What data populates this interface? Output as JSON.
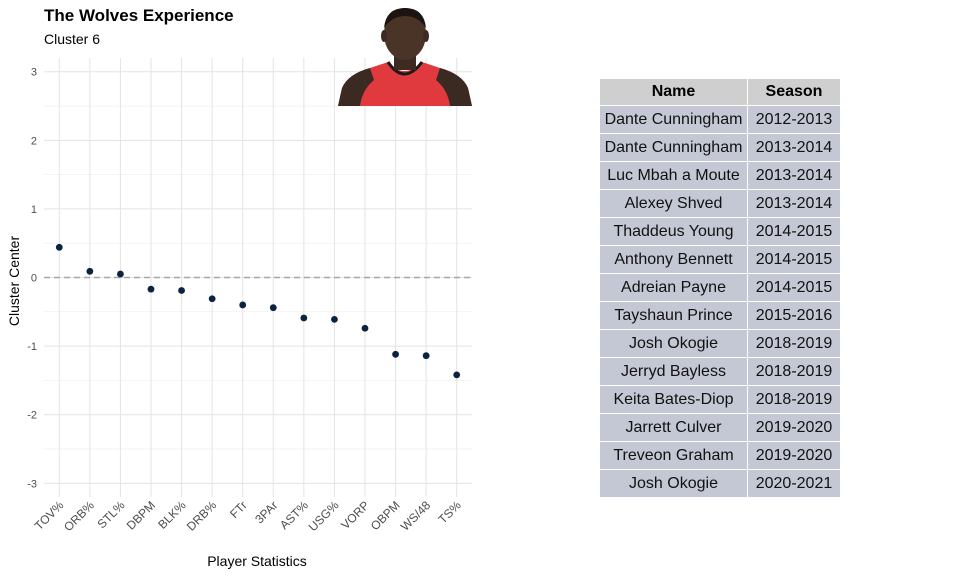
{
  "header": {
    "title": "The Wolves Experience",
    "subtitle": "Cluster 6"
  },
  "chart_data": {
    "type": "scatter",
    "title": "The Wolves Experience",
    "subtitle": "Cluster 6",
    "xlabel": "Player Statistics",
    "ylabel": "Cluster Center",
    "categories": [
      "TOV%",
      "ORB%",
      "STL%",
      "DBPM",
      "BLK%",
      "DRB%",
      "FTr",
      "3PAr",
      "AST%",
      "USG%",
      "VORP",
      "OBPM",
      "WS/48",
      "TS%"
    ],
    "values": [
      0.44,
      0.09,
      0.05,
      -0.17,
      -0.19,
      -0.31,
      -0.4,
      -0.44,
      -0.59,
      -0.61,
      -0.74,
      -1.12,
      -1.14,
      -1.42
    ],
    "ylim": [
      -3.2,
      3.2
    ],
    "yticks": [
      "3",
      "2",
      "1",
      "0",
      "-1",
      "-2",
      "-3"
    ],
    "reference_line": 0,
    "grid": true,
    "point_color": "#0c2340",
    "reference_line_color": "#a6a6a6"
  },
  "table": {
    "columns": [
      "Name",
      "Season"
    ],
    "rows": [
      [
        "Dante Cunningham",
        "2012-2013"
      ],
      [
        "Dante Cunningham",
        "2013-2014"
      ],
      [
        "Luc Mbah a Moute",
        "2013-2014"
      ],
      [
        "Alexey Shved",
        "2013-2014"
      ],
      [
        "Thaddeus Young",
        "2014-2015"
      ],
      [
        "Anthony Bennett",
        "2014-2015"
      ],
      [
        "Adreian Payne",
        "2014-2015"
      ],
      [
        "Tayshaun Prince",
        "2015-2016"
      ],
      [
        "Josh Okogie",
        "2018-2019"
      ],
      [
        "Jerryd Bayless",
        "2018-2019"
      ],
      [
        "Keita Bates-Diop",
        "2018-2019"
      ],
      [
        "Jarrett Culver",
        "2019-2020"
      ],
      [
        "Treveon Graham",
        "2019-2020"
      ],
      [
        "Josh Okogie",
        "2020-2021"
      ]
    ]
  },
  "photo": {
    "jersey_color": "#e03a3e",
    "icon": "player-headshot"
  }
}
